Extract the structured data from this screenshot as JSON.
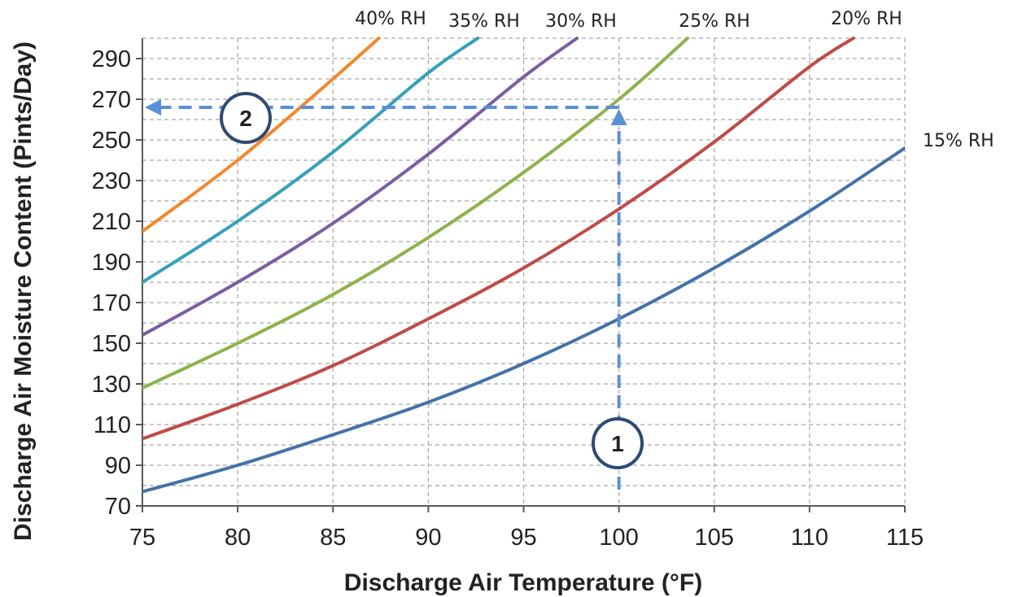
{
  "chart_data": {
    "type": "line",
    "xlabel": "Discharge Air Temperature (°F)",
    "ylabel": "Discharge Air Moisture Content (Pints/Day)",
    "xlim": [
      75,
      115
    ],
    "ylim": [
      70,
      300
    ],
    "x_ticks": [
      75,
      80,
      85,
      90,
      95,
      100,
      105,
      110,
      115
    ],
    "y_ticks": [
      70,
      90,
      110,
      130,
      150,
      170,
      190,
      210,
      230,
      250,
      270,
      290
    ],
    "grid": true,
    "grid_style": "dashed",
    "series": [
      {
        "name": "15% RH",
        "color": "#4472A8",
        "x": [
          75,
          80,
          85,
          90,
          95,
          100,
          105,
          110,
          115
        ],
        "y": [
          77,
          90,
          105,
          121,
          140,
          162,
          187,
          215,
          246
        ]
      },
      {
        "name": "20% RH",
        "color": "#BE4B48",
        "x": [
          75,
          80,
          85,
          90,
          95,
          100,
          105,
          110,
          112.3
        ],
        "y": [
          103,
          120,
          139,
          162,
          187,
          216,
          249,
          286,
          300
        ]
      },
      {
        "name": "25% RH",
        "color": "#8DB24C",
        "x": [
          75,
          80,
          85,
          90,
          95,
          100,
          103.6
        ],
        "y": [
          128,
          150,
          174,
          202,
          234,
          270,
          300
        ]
      },
      {
        "name": "30% RH",
        "color": "#7B5EA1",
        "x": [
          75,
          80,
          85,
          90,
          95,
          97.8
        ],
        "y": [
          154,
          180,
          209,
          243,
          281,
          300
        ]
      },
      {
        "name": "35% RH",
        "color": "#35A0BA",
        "x": [
          75,
          80,
          85,
          90,
          92.6
        ],
        "y": [
          180,
          210,
          244,
          283,
          300
        ]
      },
      {
        "name": "40% RH",
        "color": "#F0882F",
        "x": [
          75,
          80,
          85,
          87.4
        ],
        "y": [
          205,
          240,
          280,
          300
        ]
      }
    ],
    "annotations": [
      {
        "label": "1",
        "type": "marker"
      },
      {
        "label": "2",
        "type": "marker"
      }
    ],
    "guide_path": {
      "color": "#5B8FD6",
      "points": [
        [
          100,
          78
        ],
        [
          100,
          266
        ],
        [
          75,
          266
        ]
      ]
    }
  }
}
